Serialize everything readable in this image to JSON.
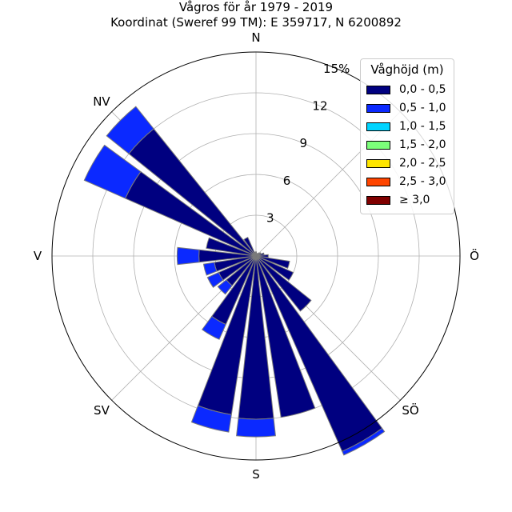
{
  "title": "Vågros för år 1979 - 2019",
  "subtitle": "Koordinat (Sweref 99 TM): E 359717, N 6200892",
  "chart_data": {
    "type": "windrose",
    "directions": [
      "N",
      "NV",
      "V",
      "SV",
      "S",
      "SÖ",
      "Ö"
    ],
    "radial_ticks": [
      "3",
      "6",
      "9",
      "12",
      "15%"
    ],
    "radial_max": 15,
    "grid": true,
    "legend_title": "Våghöjd (m)",
    "legend_position": "top-right",
    "bins": [
      {
        "label": "0,0 - 0,5",
        "color": "#000080"
      },
      {
        "label": "0,5 - 1,0",
        "color": "#0b29ff"
      },
      {
        "label": "1,0 - 1,5",
        "color": "#00d4ff"
      },
      {
        "label": "1,5 - 2,0",
        "color": "#7cff7a"
      },
      {
        "label": "2,0 - 2,5",
        "color": "#ffe600"
      },
      {
        "label": "2,5 - 3,0",
        "color": "#ff4500"
      },
      {
        "label": "≥ 3,0",
        "color": "#800000"
      }
    ],
    "sectors": [
      {
        "dir_deg": 0,
        "values": [
          0.3,
          0,
          0,
          0,
          0,
          0,
          0
        ]
      },
      {
        "dir_deg": 15,
        "values": [
          0.2,
          0,
          0,
          0,
          0,
          0,
          0
        ]
      },
      {
        "dir_deg": 30,
        "values": [
          0.2,
          0,
          0,
          0,
          0,
          0,
          0
        ]
      },
      {
        "dir_deg": 45,
        "values": [
          0.3,
          0,
          0,
          0,
          0,
          0,
          0
        ]
      },
      {
        "dir_deg": 60,
        "values": [
          0.4,
          0,
          0,
          0,
          0,
          0,
          0
        ]
      },
      {
        "dir_deg": 75,
        "values": [
          0.6,
          0,
          0,
          0,
          0,
          0,
          0
        ]
      },
      {
        "dir_deg": 90,
        "values": [
          0.9,
          0,
          0,
          0,
          0,
          0,
          0
        ]
      },
      {
        "dir_deg": 105,
        "values": [
          2.5,
          0,
          0,
          0,
          0,
          0,
          0
        ]
      },
      {
        "dir_deg": 120,
        "values": [
          3.0,
          0,
          0,
          0,
          0,
          0,
          0
        ]
      },
      {
        "dir_deg": 135,
        "values": [
          5.2,
          0,
          0,
          0,
          0,
          0,
          0
        ]
      },
      {
        "dir_deg": 150,
        "values": [
          15.7,
          0.3,
          0,
          0,
          0,
          0,
          0
        ]
      },
      {
        "dir_deg": 165,
        "values": [
          12.0,
          0,
          0,
          0,
          0,
          0,
          0
        ]
      },
      {
        "dir_deg": 180,
        "values": [
          12.0,
          1.3,
          0,
          0,
          0,
          0,
          0
        ]
      },
      {
        "dir_deg": 195,
        "values": [
          11.8,
          1.3,
          0,
          0,
          0,
          0,
          0
        ]
      },
      {
        "dir_deg": 210,
        "values": [
          5.5,
          1.2,
          0,
          0,
          0,
          0,
          0
        ]
      },
      {
        "dir_deg": 225,
        "values": [
          2.8,
          0.8,
          0,
          0,
          0,
          0,
          0
        ]
      },
      {
        "dir_deg": 240,
        "values": [
          3.0,
          0.9,
          0,
          0,
          0,
          0,
          0
        ]
      },
      {
        "dir_deg": 255,
        "values": [
          3.1,
          0.8,
          0,
          0,
          0,
          0,
          0
        ]
      },
      {
        "dir_deg": 270,
        "values": [
          4.2,
          1.6,
          0,
          0,
          0,
          0,
          0
        ]
      },
      {
        "dir_deg": 285,
        "values": [
          3.7,
          0,
          0,
          0,
          0,
          0,
          0
        ]
      },
      {
        "dir_deg": 300,
        "values": [
          10.5,
          3.3,
          0,
          0,
          0,
          0,
          0
        ]
      },
      {
        "dir_deg": 315,
        "values": [
          12.0,
          2.1,
          0,
          0,
          0,
          0,
          0
        ]
      },
      {
        "dir_deg": 330,
        "values": [
          1.5,
          0,
          0,
          0,
          0,
          0,
          0
        ]
      },
      {
        "dir_deg": 345,
        "values": [
          0.3,
          0,
          0,
          0,
          0,
          0,
          0
        ]
      }
    ]
  }
}
